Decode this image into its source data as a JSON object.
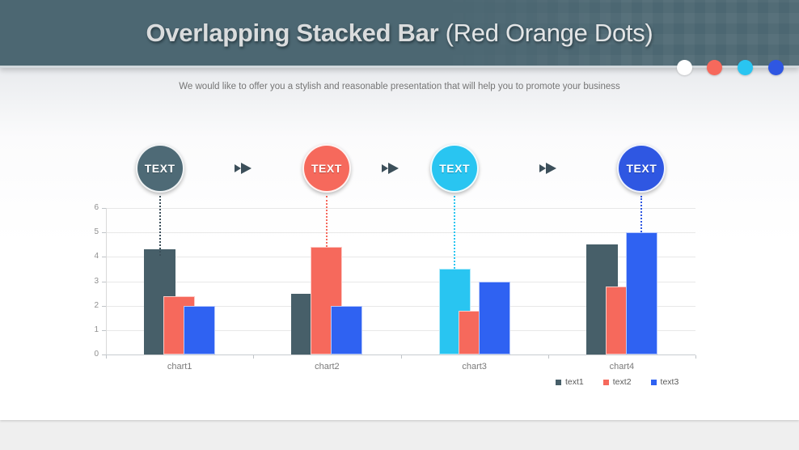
{
  "header": {
    "title_bold": "Overlapping Stacked Bar",
    "title_rest": " (Red Orange Dots)",
    "background": "#4c6772",
    "dots": [
      "#ffffff",
      "#f6695c",
      "#29c5f1",
      "#2f57e2"
    ]
  },
  "subtitle": "We would like to offer you a stylish and reasonable presentation that will help you to promote your business",
  "process": {
    "steps": [
      {
        "label": "TEXT",
        "color": "#4e6a76"
      },
      {
        "label": "TEXT",
        "color": "#f6695c"
      },
      {
        "label": "TEXT",
        "color": "#29c5f1"
      },
      {
        "label": "TEXT",
        "color": "#2f57e2"
      }
    ],
    "arrow_icon": "fast-forward",
    "arrow_color": "#3c4f5a"
  },
  "chart_data": {
    "type": "bar",
    "title": "",
    "categories": [
      "chart1",
      "chart2",
      "chart3",
      "chart4"
    ],
    "series": [
      {
        "name": "text1",
        "color": "#475f69",
        "values": [
          4.3,
          2.5,
          3.5,
          4.5
        ],
        "bar_colors": [
          "#475f69",
          "#475f69",
          "#29c5f1",
          "#475f69"
        ]
      },
      {
        "name": "text2",
        "color": "#f6695c",
        "values": [
          2.4,
          4.4,
          1.8,
          2.8
        ]
      },
      {
        "name": "text3",
        "color": "#2f62f2",
        "values": [
          2.0,
          2.0,
          3.0,
          5.0
        ]
      }
    ],
    "ylim": [
      0,
      6
    ],
    "yticks": [
      0,
      1,
      2,
      3,
      4,
      5,
      6
    ],
    "grid": true,
    "bar_style": "overlapping",
    "legend_position": "bottom-right",
    "connectors": [
      {
        "step": 0,
        "category": 0,
        "series": 0
      },
      {
        "step": 1,
        "category": 1,
        "series": 1
      },
      {
        "step": 2,
        "category": 2,
        "series": 0
      },
      {
        "step": 3,
        "category": 3,
        "series": 2
      }
    ]
  }
}
